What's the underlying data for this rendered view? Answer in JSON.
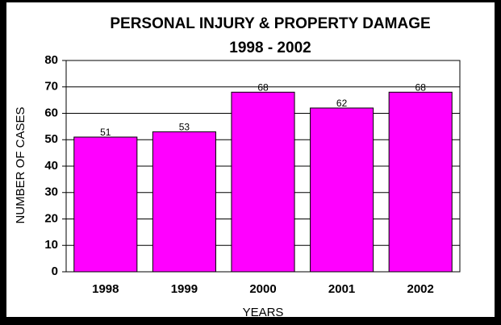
{
  "chart_data": {
    "type": "bar",
    "title": [
      "PERSONAL INJURY & PROPERTY DAMAGE",
      "1998 - 2002"
    ],
    "x_label": "YEARS",
    "y_label": "NUMBER OF CASES",
    "categories": [
      "1998",
      "1999",
      "2000",
      "2001",
      "2002"
    ],
    "values": [
      51,
      53,
      68,
      62,
      68
    ],
    "color": "#ff00ff",
    "ylim": [
      0,
      80
    ],
    "yticks": [
      0,
      10,
      20,
      30,
      40,
      50,
      60,
      70,
      80
    ],
    "grid": true
  }
}
